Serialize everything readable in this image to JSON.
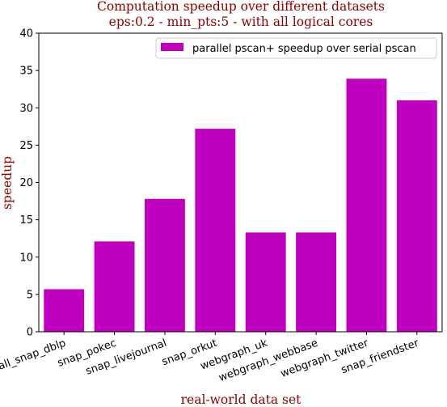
{
  "chart_data": {
    "type": "bar",
    "title": "Computation speedup over different datasets",
    "subtitle": "eps:0.2 - min_pts:5 - with all logical cores",
    "xlabel": "real-world data set",
    "ylabel": "speedup",
    "ylim": [
      0,
      40
    ],
    "yticks": [
      "0",
      "5",
      "10",
      "15",
      "20",
      "25",
      "30",
      "35",
      "40"
    ],
    "categories": [
      "small_snap_dblp",
      "snap_pokec",
      "snap_livejournal",
      "snap_orkut",
      "webgraph_uk",
      "webgraph_webbase",
      "webgraph_twitter",
      "snap_friendster"
    ],
    "series": [
      {
        "name": "parallel pscan+ speedup over serial pscan",
        "values": [
          5.7,
          12.1,
          17.8,
          27.2,
          13.3,
          13.3,
          33.9,
          31.0
        ]
      }
    ],
    "bar_color": "#bf00bf",
    "legend_position": "top-right",
    "grid": false
  }
}
